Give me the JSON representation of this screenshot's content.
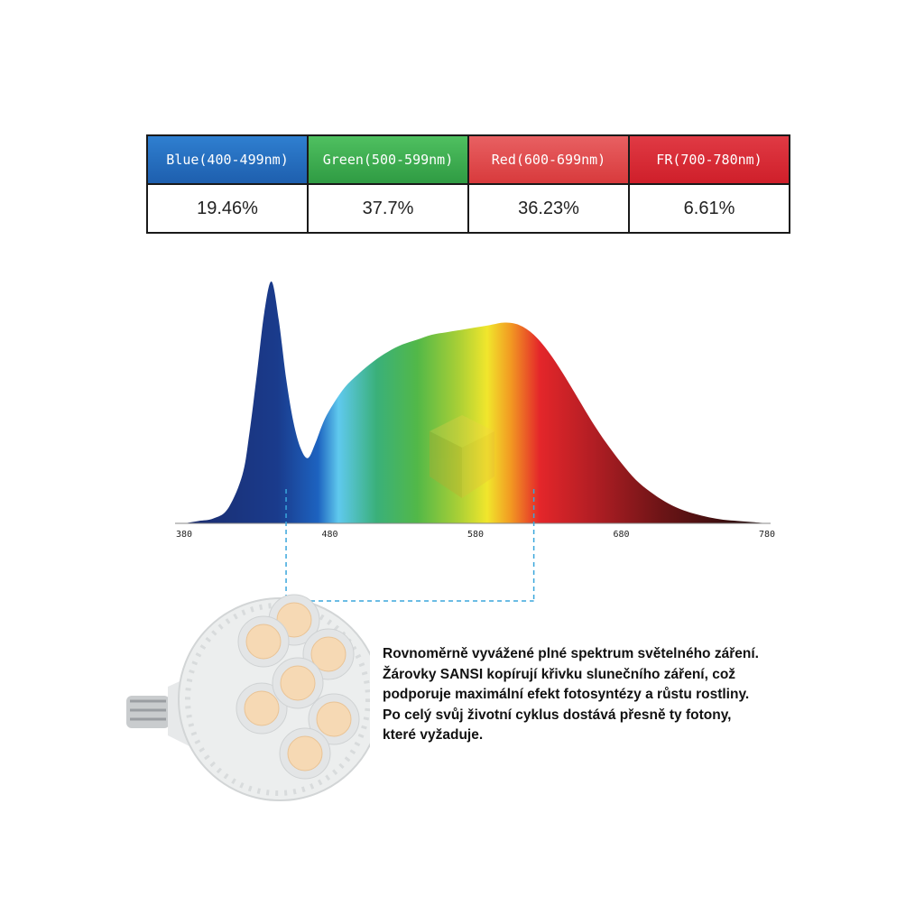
{
  "bands": [
    {
      "label": "Blue(400-499nm)",
      "value": "19.46%",
      "color": "#1e5fae",
      "color2": "#2f7fd0"
    },
    {
      "label": "Green(500-599nm)",
      "value": "37.7%",
      "color": "#2f9b43",
      "color2": "#4fc060"
    },
    {
      "label": "Red(600-699nm)",
      "value": "36.23%",
      "color": "#d83a3c",
      "color2": "#e86062"
    },
    {
      "label": "FR(700-780nm)",
      "value": "6.61%",
      "color": "#cf1f2a",
      "color2": "#e03a44"
    }
  ],
  "chart_data": {
    "type": "area",
    "title": "",
    "xlabel": "",
    "ylabel": "",
    "xlim": [
      380,
      780
    ],
    "xticks": [
      380,
      480,
      580,
      680,
      780
    ],
    "ylim": [
      0,
      1
    ],
    "grid": false,
    "series": [
      {
        "x": [
          380,
          390,
          400,
          410,
          420,
          425,
          430,
          435,
          440,
          445,
          450,
          455,
          460,
          465,
          470,
          475,
          480,
          490,
          500,
          510,
          520,
          530,
          540,
          550,
          560,
          570,
          580,
          590,
          600,
          610,
          620,
          630,
          640,
          650,
          660,
          670,
          680,
          690,
          700,
          710,
          720,
          730,
          740,
          750,
          760,
          770,
          780
        ],
        "y": [
          0.0,
          0.01,
          0.02,
          0.06,
          0.2,
          0.38,
          0.62,
          0.87,
          1.0,
          0.84,
          0.6,
          0.42,
          0.31,
          0.27,
          0.33,
          0.41,
          0.47,
          0.56,
          0.62,
          0.67,
          0.71,
          0.74,
          0.76,
          0.78,
          0.79,
          0.8,
          0.81,
          0.82,
          0.83,
          0.82,
          0.78,
          0.71,
          0.62,
          0.52,
          0.42,
          0.33,
          0.25,
          0.18,
          0.13,
          0.09,
          0.06,
          0.04,
          0.025,
          0.015,
          0.01,
          0.005,
          0.0
        ]
      }
    ],
    "marker_range": [
      450,
      620
    ]
  },
  "description_lines": [
    "Rovnoměrně vyvážené plné spektrum světelného záření.",
    "Žárovky SANSI kopírují křivku slunečního záření, což",
    "podporuje maximální efekt fotosyntézy a růstu rostliny.",
    "Po celý svůj životní cyklus dostává přesně ty fotony,",
    "které vyžaduje."
  ]
}
